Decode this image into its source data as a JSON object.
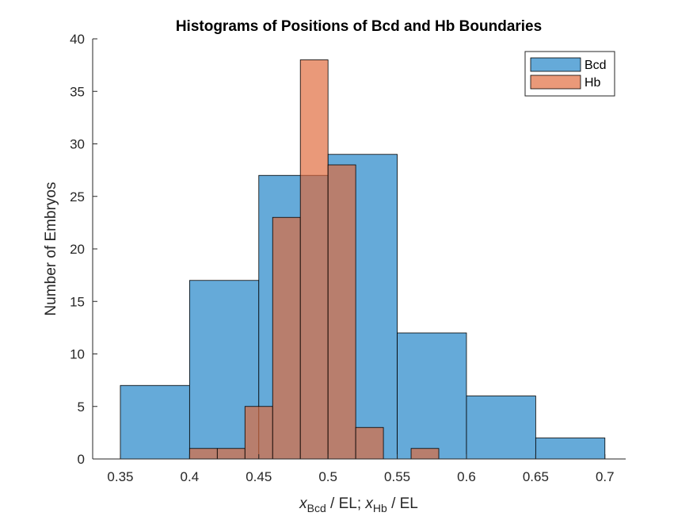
{
  "chart_data": {
    "type": "bar",
    "title": "Histograms of Positions of Bcd and Hb Boundaries",
    "xlabel": {
      "parts": [
        {
          "text": "x",
          "italic": true
        },
        {
          "text": "Bcd",
          "sub": true
        },
        {
          "text": " / EL; "
        },
        {
          "text": "x",
          "italic": true
        },
        {
          "text": "Hb",
          "sub": true
        },
        {
          "text": " / EL"
        }
      ]
    },
    "ylabel": "Number of Embryos",
    "xlim": [
      0.33,
      0.715
    ],
    "ylim": [
      0,
      40
    ],
    "xticks": [
      "0.35",
      "0.4",
      "0.45",
      "0.5",
      "0.55",
      "0.6",
      "0.65",
      "0.7"
    ],
    "yticks": [
      "0",
      "5",
      "10",
      "15",
      "20",
      "25",
      "30",
      "35",
      "40"
    ],
    "grid": false,
    "legend": {
      "position": "top-right"
    },
    "series": [
      {
        "name": "Bcd",
        "color": "#4a9bd2",
        "opacity": 0.85,
        "bins": [
          {
            "x0": 0.35,
            "x1": 0.4,
            "count": 7
          },
          {
            "x0": 0.4,
            "x1": 0.45,
            "count": 17
          },
          {
            "x0": 0.45,
            "x1": 0.5,
            "count": 27
          },
          {
            "x0": 0.5,
            "x1": 0.55,
            "count": 29
          },
          {
            "x0": 0.55,
            "x1": 0.6,
            "count": 12
          },
          {
            "x0": 0.6,
            "x1": 0.65,
            "count": 6
          },
          {
            "x0": 0.65,
            "x1": 0.7,
            "count": 2
          }
        ]
      },
      {
        "name": "Hb",
        "color": "#e0693a",
        "opacity": 0.68,
        "bins": [
          {
            "x0": 0.4,
            "x1": 0.42,
            "count": 1
          },
          {
            "x0": 0.42,
            "x1": 0.44,
            "count": 1
          },
          {
            "x0": 0.44,
            "x1": 0.46,
            "count": 5
          },
          {
            "x0": 0.46,
            "x1": 0.48,
            "count": 23
          },
          {
            "x0": 0.48,
            "x1": 0.5,
            "count": 38
          },
          {
            "x0": 0.5,
            "x1": 0.52,
            "count": 28
          },
          {
            "x0": 0.52,
            "x1": 0.54,
            "count": 3
          },
          {
            "x0": 0.54,
            "x1": 0.56,
            "count": 0
          },
          {
            "x0": 0.56,
            "x1": 0.58,
            "count": 1
          }
        ]
      }
    ]
  }
}
